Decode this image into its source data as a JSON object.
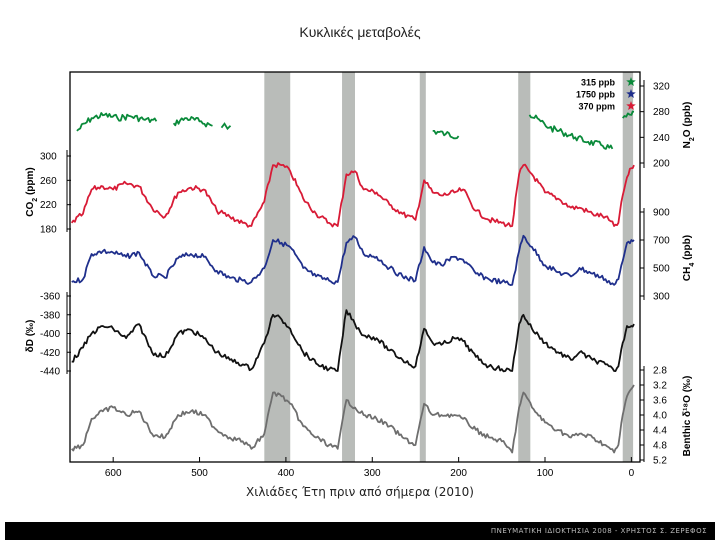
{
  "title": "Κυκλικές μεταβολές",
  "footer": "ΠΝΕΥΜΑΤΙΚΗ ΙΔΙΟΚΤΗΣΙΑ 2008 - ΧΡΗΣΤΟΣ Σ. ΖΕΡΕΦΟΣ",
  "chart_data": {
    "type": "line",
    "xlabel": "Χιλιάδες Έτη πριν από σήμερα (2010)",
    "xlim": [
      650,
      -10
    ],
    "x_ticks": [
      600,
      500,
      400,
      300,
      200,
      100,
      0
    ],
    "x_tick_labels": [
      "600",
      "500",
      "400",
      "300",
      "200",
      "100",
      "0"
    ],
    "interglacial_bands": [
      [
        425,
        395
      ],
      [
        335,
        320
      ],
      [
        245,
        238
      ],
      [
        131,
        117
      ],
      [
        10,
        -2
      ]
    ],
    "band_color": "#b9bcb9",
    "legend": [
      {
        "label": "315 ppb",
        "color": "#0a8a3a"
      },
      {
        "label": "1750 ppb",
        "color": "#1f2f8c"
      },
      {
        "label": "370 ppm",
        "color": "#d81b36"
      }
    ],
    "axes": {
      "n2o": {
        "label_main": "N",
        "label_sub": "2",
        "label_tail": "O (ppb)",
        "side": "right",
        "ticks": [
          "320",
          "280",
          "240",
          "200"
        ]
      },
      "co2": {
        "label_main": "CO",
        "label_sub": "2",
        "label_tail": " (ppm)",
        "side": "left",
        "ticks": [
          "300",
          "260",
          "220",
          "180"
        ]
      },
      "ch4": {
        "label_main": "CH",
        "label_sub": "4",
        "label_tail": " (ppb)",
        "side": "right",
        "ticks": [
          "900",
          "700",
          "500",
          "300"
        ]
      },
      "dd": {
        "label": "δD (‰)",
        "side": "left",
        "ticks": [
          "-360",
          "-380",
          "-400",
          "-420",
          "-440"
        ]
      },
      "d18o": {
        "label": "Benthic δ¹⁸O (‰)",
        "side": "right",
        "ticks": [
          "2.8",
          "3.2",
          "3.6",
          "4.0",
          "4.4",
          "4.8",
          "5.2"
        ]
      }
    },
    "series": [
      {
        "key": "n2o",
        "color": "#0a8a3a",
        "segments": [
          [
            [
              642,
              250
            ],
            [
              625,
              270
            ],
            [
              610,
              275
            ],
            [
              595,
              270
            ],
            [
              580,
              273
            ],
            [
              565,
              268
            ],
            [
              550,
              265
            ]
          ],
          [
            [
              530,
              262
            ],
            [
              515,
              270
            ],
            [
              500,
              265
            ],
            [
              485,
              258
            ]
          ],
          [
            [
              470,
              255
            ]
          ],
          [
            [
              230,
              250
            ],
            [
              215,
              245
            ],
            [
              200,
              242
            ]
          ],
          [
            [
              118,
              275
            ],
            [
              105,
              265
            ],
            [
              95,
              255
            ],
            [
              80,
              248
            ],
            [
              65,
              240
            ],
            [
              50,
              233
            ],
            [
              35,
              228
            ],
            [
              22,
              222
            ]
          ],
          [
            [
              10,
              270
            ],
            [
              0,
              275
            ],
            [
              -3,
              280
            ]
          ]
        ]
      },
      {
        "key": "co2",
        "color": "#d81b36",
        "points": [
          [
            648,
            190
          ],
          [
            635,
            205
          ],
          [
            625,
            245
          ],
          [
            612,
            250
          ],
          [
            600,
            245
          ],
          [
            585,
            255
          ],
          [
            570,
            250
          ],
          [
            555,
            215
          ],
          [
            540,
            200
          ],
          [
            525,
            240
          ],
          [
            510,
            248
          ],
          [
            495,
            245
          ],
          [
            480,
            210
          ],
          [
            465,
            200
          ],
          [
            450,
            190
          ],
          [
            440,
            185
          ],
          [
            425,
            225
          ],
          [
            415,
            285
          ],
          [
            405,
            285
          ],
          [
            395,
            275
          ],
          [
            380,
            230
          ],
          [
            365,
            205
          ],
          [
            350,
            190
          ],
          [
            340,
            185
          ],
          [
            330,
            270
          ],
          [
            320,
            275
          ],
          [
            310,
            245
          ],
          [
            295,
            240
          ],
          [
            280,
            220
          ],
          [
            265,
            205
          ],
          [
            250,
            195
          ],
          [
            240,
            260
          ],
          [
            230,
            240
          ],
          [
            220,
            235
          ],
          [
            205,
            240
          ],
          [
            195,
            245
          ],
          [
            180,
            210
          ],
          [
            165,
            195
          ],
          [
            150,
            190
          ],
          [
            138,
            185
          ],
          [
            130,
            270
          ],
          [
            125,
            285
          ],
          [
            115,
            270
          ],
          [
            100,
            240
          ],
          [
            85,
            230
          ],
          [
            70,
            215
          ],
          [
            60,
            215
          ],
          [
            45,
            205
          ],
          [
            30,
            200
          ],
          [
            20,
            185
          ],
          [
            15,
            190
          ],
          [
            10,
            235
          ],
          [
            5,
            265
          ],
          [
            0,
            280
          ],
          [
            -3,
            285
          ]
        ]
      },
      {
        "key": "ch4",
        "color": "#1f2f8c",
        "points": [
          [
            648,
            400
          ],
          [
            635,
            420
          ],
          [
            625,
            600
          ],
          [
            612,
            620
          ],
          [
            600,
            610
          ],
          [
            585,
            580
          ],
          [
            570,
            610
          ],
          [
            555,
            450
          ],
          [
            540,
            430
          ],
          [
            525,
            570
          ],
          [
            510,
            600
          ],
          [
            495,
            580
          ],
          [
            480,
            480
          ],
          [
            465,
            430
          ],
          [
            450,
            410
          ],
          [
            440,
            400
          ],
          [
            425,
            500
          ],
          [
            415,
            700
          ],
          [
            405,
            680
          ],
          [
            395,
            650
          ],
          [
            380,
            500
          ],
          [
            365,
            440
          ],
          [
            350,
            410
          ],
          [
            340,
            400
          ],
          [
            330,
            680
          ],
          [
            320,
            720
          ],
          [
            310,
            600
          ],
          [
            295,
            580
          ],
          [
            280,
            500
          ],
          [
            265,
            440
          ],
          [
            250,
            410
          ],
          [
            240,
            650
          ],
          [
            230,
            540
          ],
          [
            220,
            520
          ],
          [
            205,
            580
          ],
          [
            195,
            560
          ],
          [
            180,
            460
          ],
          [
            165,
            420
          ],
          [
            150,
            400
          ],
          [
            138,
            380
          ],
          [
            130,
            620
          ],
          [
            125,
            730
          ],
          [
            115,
            650
          ],
          [
            100,
            520
          ],
          [
            85,
            470
          ],
          [
            70,
            440
          ],
          [
            60,
            500
          ],
          [
            45,
            460
          ],
          [
            30,
            420
          ],
          [
            20,
            380
          ],
          [
            15,
            420
          ],
          [
            10,
            550
          ],
          [
            5,
            680
          ],
          [
            0,
            700
          ],
          [
            -3,
            700
          ]
        ]
      },
      {
        "key": "dd",
        "color": "#111111",
        "points": [
          [
            648,
            -430
          ],
          [
            635,
            -415
          ],
          [
            625,
            -400
          ],
          [
            612,
            -392
          ],
          [
            600,
            -395
          ],
          [
            585,
            -405
          ],
          [
            570,
            -390
          ],
          [
            555,
            -420
          ],
          [
            540,
            -425
          ],
          [
            525,
            -400
          ],
          [
            510,
            -396
          ],
          [
            495,
            -405
          ],
          [
            480,
            -420
          ],
          [
            465,
            -428
          ],
          [
            450,
            -433
          ],
          [
            440,
            -438
          ],
          [
            425,
            -410
          ],
          [
            415,
            -380
          ],
          [
            405,
            -385
          ],
          [
            395,
            -395
          ],
          [
            380,
            -420
          ],
          [
            365,
            -432
          ],
          [
            350,
            -438
          ],
          [
            340,
            -440
          ],
          [
            330,
            -375
          ],
          [
            320,
            -390
          ],
          [
            310,
            -402
          ],
          [
            295,
            -405
          ],
          [
            280,
            -418
          ],
          [
            265,
            -428
          ],
          [
            250,
            -435
          ],
          [
            240,
            -395
          ],
          [
            230,
            -410
          ],
          [
            220,
            -412
          ],
          [
            205,
            -405
          ],
          [
            195,
            -408
          ],
          [
            180,
            -425
          ],
          [
            165,
            -435
          ],
          [
            150,
            -438
          ],
          [
            138,
            -440
          ],
          [
            130,
            -390
          ],
          [
            125,
            -380
          ],
          [
            115,
            -395
          ],
          [
            100,
            -410
          ],
          [
            85,
            -420
          ],
          [
            70,
            -428
          ],
          [
            60,
            -420
          ],
          [
            45,
            -428
          ],
          [
            30,
            -433
          ],
          [
            20,
            -440
          ],
          [
            15,
            -435
          ],
          [
            10,
            -410
          ],
          [
            5,
            -392
          ],
          [
            0,
            -392
          ],
          [
            -3,
            -390
          ]
        ]
      },
      {
        "key": "d18o",
        "color": "#6e6e6e",
        "points": [
          [
            648,
            4.9
          ],
          [
            635,
            4.8
          ],
          [
            625,
            4.1
          ],
          [
            612,
            3.9
          ],
          [
            600,
            3.8
          ],
          [
            585,
            4.0
          ],
          [
            570,
            3.9
          ],
          [
            555,
            4.5
          ],
          [
            540,
            4.6
          ],
          [
            525,
            4.0
          ],
          [
            510,
            3.9
          ],
          [
            495,
            4.0
          ],
          [
            480,
            4.4
          ],
          [
            465,
            4.6
          ],
          [
            450,
            4.7
          ],
          [
            440,
            4.9
          ],
          [
            425,
            4.5
          ],
          [
            415,
            3.4
          ],
          [
            405,
            3.5
          ],
          [
            395,
            3.7
          ],
          [
            380,
            4.3
          ],
          [
            365,
            4.6
          ],
          [
            350,
            4.8
          ],
          [
            340,
            4.9
          ],
          [
            330,
            3.6
          ],
          [
            320,
            3.8
          ],
          [
            310,
            4.0
          ],
          [
            295,
            4.1
          ],
          [
            280,
            4.3
          ],
          [
            265,
            4.6
          ],
          [
            250,
            4.8
          ],
          [
            240,
            3.7
          ],
          [
            230,
            4.0
          ],
          [
            220,
            4.0
          ],
          [
            205,
            4.0
          ],
          [
            195,
            4.1
          ],
          [
            180,
            4.4
          ],
          [
            165,
            4.6
          ],
          [
            150,
            4.7
          ],
          [
            138,
            5.0
          ],
          [
            130,
            3.8
          ],
          [
            125,
            3.4
          ],
          [
            115,
            3.8
          ],
          [
            100,
            4.2
          ],
          [
            85,
            4.4
          ],
          [
            70,
            4.6
          ],
          [
            60,
            4.5
          ],
          [
            45,
            4.6
          ],
          [
            30,
            4.8
          ],
          [
            20,
            5.0
          ],
          [
            15,
            4.8
          ],
          [
            10,
            4.0
          ],
          [
            5,
            3.5
          ],
          [
            0,
            3.3
          ],
          [
            -3,
            3.2
          ]
        ]
      }
    ]
  }
}
